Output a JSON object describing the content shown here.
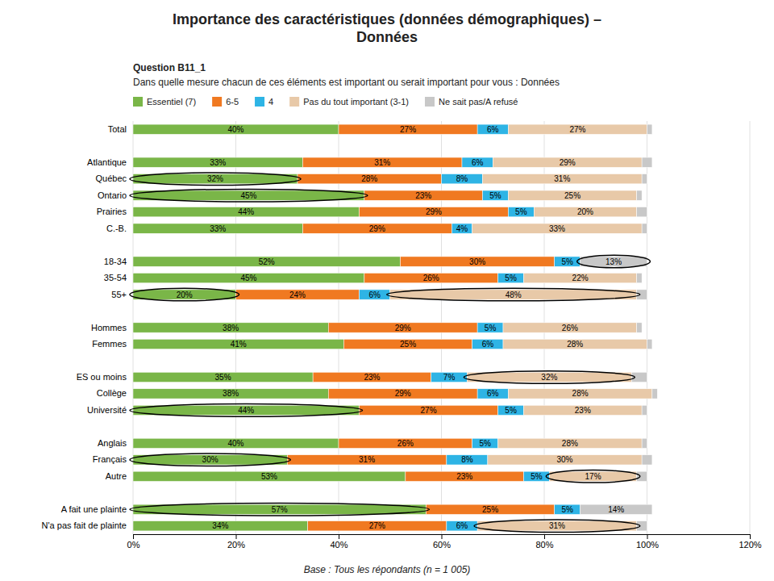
{
  "chart_data": {
    "type": "bar",
    "orientation": "horizontal",
    "stacked": true,
    "title": "Importance des caractéristiques (données démographiques) –\nDonnées",
    "subtitle": "Question B11_1",
    "annotations": [
      "Dans quelle mesure chacun de ces éléments est important ou serait important pour vous : Données",
      "Base : Tous les répondants (n = 1 005)"
    ],
    "categories": [
      "Total",
      null,
      "Atlantique",
      "Québec",
      "Ontario",
      "Prairies",
      "C.-B.",
      null,
      "18-34",
      "35-54",
      "55+",
      null,
      "Hommes",
      "Femmes",
      null,
      "ES ou moins",
      "Collège",
      "Université",
      null,
      "Anglais",
      "Français",
      "Autre",
      null,
      "A fait une plainte",
      "N'a pas fait de plainte"
    ],
    "series": [
      {
        "name": "Essentiel (7)",
        "color": "#7ab648",
        "values": [
          40,
          0,
          33,
          32,
          45,
          44,
          33,
          0,
          52,
          45,
          20,
          0,
          38,
          41,
          0,
          35,
          38,
          44,
          0,
          40,
          30,
          53,
          0,
          57,
          34
        ],
        "value_labels": [
          "40%",
          null,
          "33%",
          "32%",
          "45%",
          "44%",
          "33%",
          null,
          "52%",
          "45%",
          "20%",
          null,
          "38%",
          "41%",
          null,
          "35%",
          "38%",
          "44%",
          null,
          "40%",
          "30%",
          "53%",
          null,
          "57%",
          "34%"
        ],
        "circled": [
          3,
          4,
          10,
          17,
          20,
          23
        ]
      },
      {
        "name": "6-5",
        "color": "#f07921",
        "values": [
          27,
          0,
          31,
          28,
          23,
          29,
          29,
          0,
          30,
          26,
          24,
          0,
          29,
          25,
          0,
          23,
          29,
          27,
          0,
          26,
          31,
          23,
          0,
          25,
          27
        ],
        "value_labels": [
          "27%",
          null,
          "31%",
          "28%",
          "23%",
          "29%",
          "29%",
          null,
          "30%",
          "26%",
          "24%",
          null,
          "29%",
          "25%",
          null,
          "23%",
          "29%",
          "27%",
          null,
          "26%",
          "31%",
          "23%",
          null,
          "25%",
          "27%"
        ],
        "circled": []
      },
      {
        "name": "4",
        "color": "#2eb4e5",
        "values": [
          6,
          0,
          6,
          8,
          5,
          5,
          4,
          0,
          5,
          5,
          6,
          0,
          5,
          6,
          0,
          7,
          6,
          5,
          0,
          5,
          8,
          5,
          0,
          5,
          6
        ],
        "value_labels": [
          "6%",
          null,
          "6%",
          "8%",
          "5%",
          "5%",
          "4%",
          null,
          "5%",
          "5%",
          "6%",
          null,
          "5%",
          "6%",
          null,
          "7%",
          "6%",
          "5%",
          null,
          "5%",
          "8%",
          "5%",
          null,
          "5%",
          "6%"
        ],
        "circled": []
      },
      {
        "name": "Pas du tout important (3-1)",
        "color": "#e8c9a8",
        "values": [
          27,
          0,
          29,
          31,
          25,
          20,
          33,
          0,
          0,
          22,
          48,
          0,
          26,
          28,
          0,
          32,
          28,
          23,
          0,
          28,
          30,
          17,
          0,
          0,
          31
        ],
        "value_labels": [
          "27%",
          null,
          "29%",
          "31%",
          "25%",
          "20%",
          "33%",
          null,
          null,
          "22%",
          "48%",
          null,
          "26%",
          "28%",
          null,
          "32%",
          "28%",
          "23%",
          null,
          "28%",
          "30%",
          "17%",
          null,
          null,
          "31%"
        ],
        "circled": [
          10,
          15,
          21,
          24
        ]
      },
      {
        "name": "Ne sait pas/A refusé",
        "color": "#c8c8c8",
        "values": [
          1,
          0,
          2,
          1,
          1,
          2,
          1,
          0,
          13,
          1,
          2,
          0,
          1,
          1,
          0,
          3,
          1,
          1,
          0,
          1,
          2,
          2,
          0,
          14,
          2
        ],
        "value_labels": [
          null,
          null,
          null,
          null,
          null,
          null,
          null,
          null,
          "13%",
          null,
          null,
          null,
          null,
          null,
          null,
          null,
          null,
          null,
          null,
          null,
          null,
          null,
          null,
          "14%",
          null
        ],
        "circled": [
          8
        ]
      }
    ],
    "xlim": [
      0,
      120
    ],
    "xticks": [
      {
        "value": 0,
        "label": "0%"
      },
      {
        "value": 20,
        "label": "20%"
      },
      {
        "value": 40,
        "label": "40%"
      },
      {
        "value": 60,
        "label": "60%"
      },
      {
        "value": 80,
        "label": "80%"
      },
      {
        "value": 100,
        "label": "100%"
      },
      {
        "value": 120,
        "label": "120%"
      }
    ],
    "grid": true,
    "legend": "top",
    "data_labels": true
  }
}
